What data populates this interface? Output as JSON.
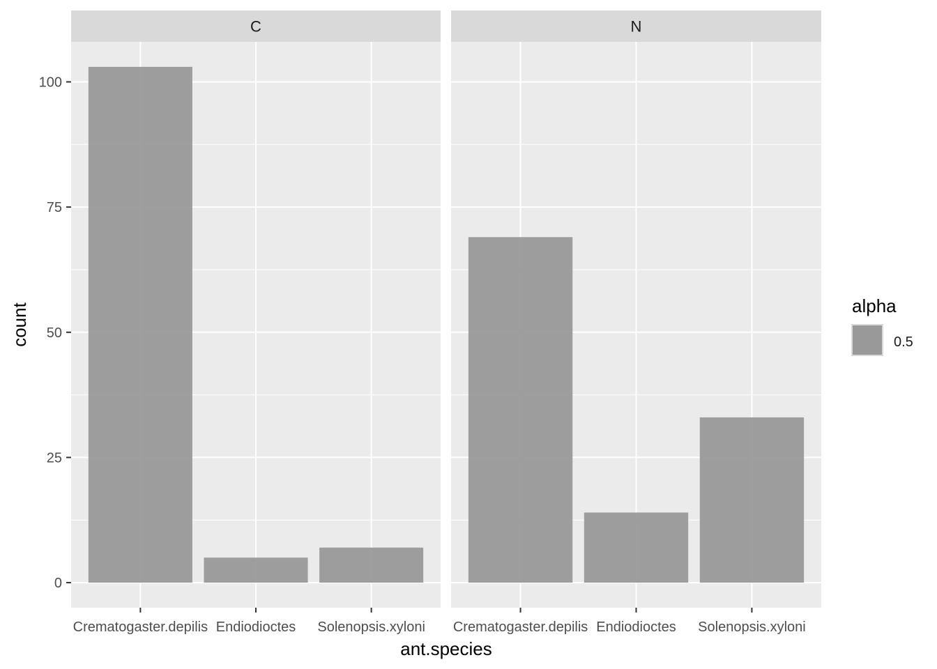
{
  "chart_data": {
    "type": "bar",
    "facets": [
      {
        "label": "C",
        "categories": [
          "Crematogaster.depilis",
          "Endiodioctes",
          "Solenopsis.xyloni"
        ],
        "values": [
          103,
          5,
          7
        ]
      },
      {
        "label": "N",
        "categories": [
          "Crematogaster.depilis",
          "Endiodioctes",
          "Solenopsis.xyloni"
        ],
        "values": [
          69,
          14,
          33
        ]
      }
    ],
    "xlabel": "ant.species",
    "ylabel": "count",
    "ylim": [
      -5,
      108
    ],
    "yticks": [
      0,
      25,
      50,
      75,
      100
    ],
    "ytick_labels": [
      "0",
      "25",
      "50",
      "75",
      "100"
    ],
    "legend": {
      "title": "alpha",
      "entries": [
        {
          "label": "0.5",
          "color": "#999999"
        }
      ],
      "placement": "right"
    },
    "grid": true,
    "colors": {
      "panel_bg": "#ebebeb",
      "strip_bg": "#d9d9d9",
      "grid": "#ffffff",
      "bar": "#999999"
    }
  }
}
